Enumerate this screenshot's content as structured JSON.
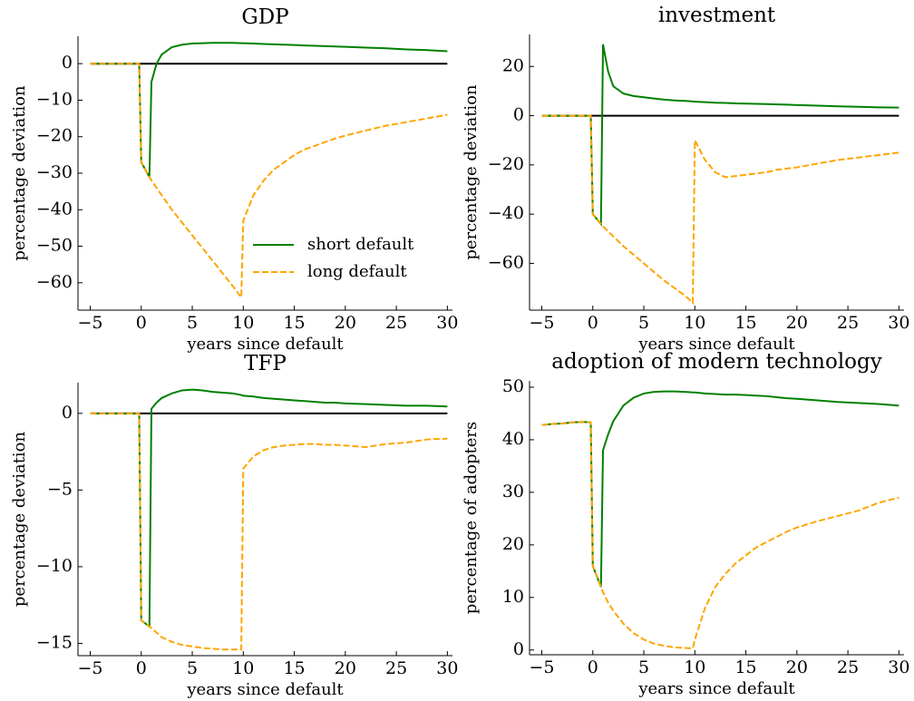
{
  "chart_data": [
    {
      "type": "line",
      "title": "GDP",
      "xlabel": "years since default",
      "ylabel": "percentage deviation",
      "x": [
        -5,
        -4,
        -3,
        -2,
        -1,
        -0.2,
        0,
        0.8,
        1,
        1.5,
        2,
        3,
        4,
        5,
        6,
        7,
        8,
        9,
        9.8,
        10,
        11,
        12,
        13,
        14,
        15,
        16,
        17,
        18,
        19,
        20,
        22,
        24,
        26,
        28,
        30
      ],
      "series": [
        {
          "name": "short default",
          "color": "#008000",
          "linestyle": "solid",
          "values": [
            0,
            0,
            0,
            0,
            0,
            0,
            -27,
            -31,
            -5,
            0,
            2.5,
            4.5,
            5.2,
            5.5,
            5.6,
            5.7,
            5.7,
            5.7,
            5.6,
            5.6,
            5.5,
            5.4,
            5.3,
            5.2,
            5.1,
            5.0,
            4.9,
            4.8,
            4.7,
            4.6,
            4.4,
            4.2,
            3.9,
            3.7,
            3.4
          ]
        },
        {
          "name": "long default",
          "color": "#ffa500",
          "linestyle": "dashed",
          "values": [
            0,
            0,
            0,
            0,
            0,
            0,
            -27,
            -31,
            -32,
            -34,
            -36,
            -40,
            -43.5,
            -47,
            -50.5,
            -54,
            -57.5,
            -61,
            -64,
            -43,
            -36,
            -32,
            -29,
            -27,
            -25,
            -23.5,
            -22.5,
            -21.5,
            -20.5,
            -19.7,
            -18.3,
            -17,
            -16,
            -15,
            -14
          ]
        }
      ],
      "xlim": [
        -6.2,
        30.5
      ],
      "ylim": [
        -67.5,
        7.5
      ],
      "xticks": [
        {
          "value": -5,
          "label": "−5"
        },
        0,
        5,
        10,
        15,
        20,
        25,
        30
      ],
      "yticks": [
        0,
        {
          "value": -10,
          "label": "−10"
        },
        {
          "value": -20,
          "label": "−20"
        },
        {
          "value": -30,
          "label": "−30"
        },
        {
          "value": -40,
          "label": "−40"
        },
        {
          "value": -50,
          "label": "−50"
        },
        {
          "value": -60,
          "label": "−60"
        }
      ],
      "hline": 0,
      "legend": "lower right"
    },
    {
      "type": "line",
      "title": "investment",
      "xlabel": "years since default",
      "ylabel": "percentage deviation",
      "x": [
        -5,
        -4,
        -3,
        -2,
        -1,
        -0.2,
        0,
        0.8,
        1,
        1.5,
        2,
        3,
        4,
        5,
        6,
        7,
        8,
        9,
        9.8,
        10,
        11,
        12,
        13,
        14,
        15,
        16,
        17,
        18,
        19,
        20,
        22,
        24,
        26,
        28,
        30
      ],
      "series": [
        {
          "name": "short default",
          "color": "#008000",
          "linestyle": "solid",
          "values": [
            0,
            0,
            0,
            0,
            0,
            0,
            -40,
            -44,
            29,
            18,
            12,
            9,
            8,
            7.5,
            7,
            6.5,
            6.2,
            6,
            5.8,
            5.7,
            5.5,
            5.3,
            5.2,
            5,
            4.9,
            4.8,
            4.7,
            4.6,
            4.5,
            4.3,
            4.1,
            3.8,
            3.6,
            3.4,
            3.3
          ]
        },
        {
          "name": "long default",
          "color": "#ffa500",
          "linestyle": "dashed",
          "values": [
            0,
            0,
            0,
            0,
            0,
            0,
            -40,
            -44,
            -45,
            -47,
            -49,
            -53,
            -56.5,
            -60,
            -63.5,
            -67,
            -70,
            -73,
            -76,
            -10,
            -18,
            -23,
            -25,
            -24.5,
            -24,
            -23.5,
            -23,
            -22,
            -21.5,
            -21,
            -19.5,
            -18,
            -17,
            -16,
            -15
          ]
        }
      ],
      "xlim": [
        -6.2,
        30.5
      ],
      "ylim": [
        -79,
        33
      ],
      "xticks": [
        {
          "value": -5,
          "label": "−5"
        },
        0,
        5,
        10,
        15,
        20,
        25,
        30
      ],
      "yticks": [
        20,
        0,
        {
          "value": -20,
          "label": "−20"
        },
        {
          "value": -40,
          "label": "−40"
        },
        {
          "value": -60,
          "label": "−60"
        }
      ],
      "hline": 0
    },
    {
      "type": "line",
      "title": "TFP",
      "xlabel": "years since default",
      "ylabel": "percentage deviation",
      "x": [
        -5,
        -4,
        -3,
        -2,
        -1,
        -0.2,
        0,
        0.8,
        1,
        1.5,
        2,
        3,
        4,
        5,
        6,
        7,
        8,
        9,
        9.8,
        10,
        11,
        12,
        13,
        14,
        15,
        16,
        17,
        18,
        19,
        20,
        22,
        24,
        26,
        28,
        30
      ],
      "series": [
        {
          "name": "short default",
          "color": "#008000",
          "linestyle": "solid",
          "values": [
            0,
            0,
            0,
            0,
            0,
            0,
            -13.5,
            -13.9,
            0.3,
            0.7,
            1.0,
            1.3,
            1.5,
            1.55,
            1.5,
            1.4,
            1.35,
            1.3,
            1.2,
            1.15,
            1.1,
            1.0,
            0.95,
            0.9,
            0.85,
            0.8,
            0.75,
            0.7,
            0.7,
            0.65,
            0.6,
            0.55,
            0.5,
            0.5,
            0.45
          ]
        },
        {
          "name": "long default",
          "color": "#ffa500",
          "linestyle": "dashed",
          "values": [
            0,
            0,
            0,
            0,
            0,
            0,
            -13.5,
            -13.9,
            -14,
            -14.3,
            -14.6,
            -14.9,
            -15.1,
            -15.2,
            -15.3,
            -15.35,
            -15.4,
            -15.4,
            -15.4,
            -3.6,
            -2.8,
            -2.4,
            -2.2,
            -2.1,
            -2.05,
            -2.0,
            -2.0,
            -2.05,
            -2.05,
            -2.1,
            -2.2,
            -2.0,
            -1.9,
            -1.7,
            -1.65
          ]
        }
      ],
      "xlim": [
        -6.2,
        30.5
      ],
      "ylim": [
        -15.8,
        2.0
      ],
      "xticks": [
        {
          "value": -5,
          "label": "−5"
        },
        0,
        5,
        10,
        15,
        20,
        25,
        30
      ],
      "yticks": [
        0,
        {
          "value": -5,
          "label": "−5"
        },
        {
          "value": -10,
          "label": "−10"
        },
        {
          "value": -15,
          "label": "−15"
        }
      ],
      "hline": 0
    },
    {
      "type": "line",
      "title": "adoption of modern technology",
      "xlabel": "years since default",
      "ylabel": "percentage of adopters",
      "x": [
        -5,
        -4,
        -3,
        -2,
        -1,
        -0.2,
        0,
        0.8,
        1,
        1.5,
        2,
        3,
        4,
        5,
        6,
        7,
        8,
        9,
        9.8,
        10,
        11,
        12,
        13,
        14,
        15,
        16,
        17,
        18,
        19,
        20,
        22,
        24,
        26,
        28,
        30
      ],
      "series": [
        {
          "name": "short default",
          "color": "#008000",
          "linestyle": "solid",
          "values": [
            42.8,
            43,
            43.1,
            43.3,
            43.4,
            43.3,
            16,
            12,
            38,
            41,
            43.5,
            46.5,
            48,
            48.8,
            49.1,
            49.2,
            49.2,
            49.1,
            49,
            49,
            48.8,
            48.7,
            48.6,
            48.6,
            48.5,
            48.4,
            48.3,
            48.1,
            47.9,
            47.8,
            47.5,
            47.2,
            47,
            46.8,
            46.5
          ]
        },
        {
          "name": "long default",
          "color": "#ffa500",
          "linestyle": "dashed",
          "values": [
            42.8,
            43,
            43.1,
            43.3,
            43.4,
            43.3,
            16,
            12,
            11,
            9,
            7.5,
            5,
            3.2,
            2,
            1.2,
            0.8,
            0.5,
            0.4,
            0.3,
            2,
            8,
            12,
            14.5,
            16.5,
            18,
            19.5,
            20.5,
            21.5,
            22.5,
            23.3,
            24.5,
            25.5,
            26.5,
            28,
            29
          ]
        }
      ],
      "xlim": [
        -6.2,
        30.5
      ],
      "ylim": [
        -0.9,
        51.2
      ],
      "xticks": [
        {
          "value": -5,
          "label": "−5"
        },
        0,
        5,
        10,
        15,
        20,
        25,
        30
      ],
      "yticks": [
        0,
        10,
        20,
        30,
        40,
        50
      ]
    }
  ]
}
